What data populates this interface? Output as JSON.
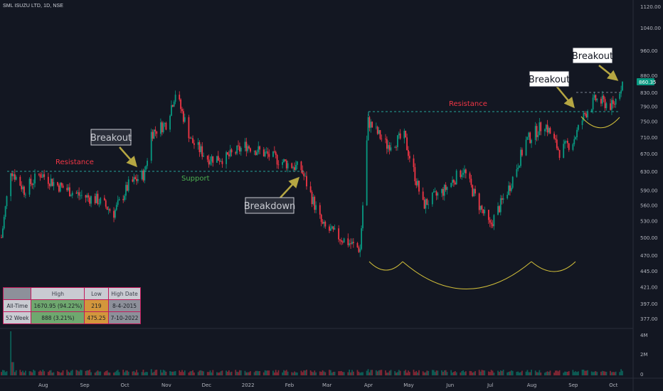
{
  "header": {
    "symbol": "SML ISUZU LTD, 1D, NSE"
  },
  "price_axis": {
    "ticks": [
      "1120.00",
      "1040.00",
      "960.00",
      "880.00",
      "830.00",
      "790.00",
      "750.00",
      "710.00",
      "670.00",
      "630.00",
      "590.00",
      "560.00",
      "530.00",
      "500.00",
      "470.00",
      "445.00",
      "421.00",
      "397.00",
      "377.00"
    ],
    "last_price": "860.35",
    "last_price_color": "#089981"
  },
  "volume_axis": {
    "ticks": [
      "4M",
      "2M",
      "0"
    ]
  },
  "time_axis": {
    "ticks": [
      "Aug",
      "Sep",
      "Oct",
      "Nov",
      "Dec",
      "2022",
      "Feb",
      "Mar",
      "Apr",
      "May",
      "Jun",
      "Jul",
      "Aug",
      "Sep",
      "Oct"
    ]
  },
  "annotations": {
    "resistance_left": "Resistance",
    "support": "Support",
    "resistance_right": "Resistance",
    "breakout_1": "Breakout",
    "breakdown": "Breakdown",
    "breakout_2": "Breakout",
    "breakout_3": "Breakout"
  },
  "stats_table": {
    "headers": [
      "",
      "High",
      "Low",
      "High Date"
    ],
    "rows": [
      {
        "label": "All-Time",
        "high": "1670.95 (94.22%)",
        "low": "219",
        "date": "8-4-2015"
      },
      {
        "label": "52 Week",
        "high": "888 (3.21%)",
        "low": "475.25",
        "date": "7-10-2022"
      }
    ]
  },
  "colors": {
    "up": "#089981",
    "down": "#f23645",
    "support": "#4caf50",
    "resistance_text": "#f23645",
    "resistance_line": "#26a69a",
    "arrow": "#b5a642",
    "cup_curve": "#d4c13a"
  },
  "chart_data": {
    "type": "candlestick",
    "title": "SML ISUZU LTD, 1D, NSE",
    "scale": "log",
    "ylim": [
      377,
      1120
    ],
    "x_range": [
      "2021-07-05",
      "2022-10-12"
    ],
    "months": [
      "Aug",
      "Sep",
      "Oct",
      "Nov",
      "Dec",
      "2022",
      "Feb",
      "Mar",
      "Apr",
      "May",
      "Jun",
      "Jul",
      "Aug",
      "Sep",
      "Oct"
    ],
    "close_path": [
      {
        "date": "2021-07-05",
        "close": 500
      },
      {
        "date": "2021-07-12",
        "close": 635
      },
      {
        "date": "2021-07-22",
        "close": 590
      },
      {
        "date": "2021-08-03",
        "close": 625
      },
      {
        "date": "2021-08-16",
        "close": 600
      },
      {
        "date": "2021-09-01",
        "close": 580
      },
      {
        "date": "2021-09-15",
        "close": 570
      },
      {
        "date": "2021-09-27",
        "close": 545
      },
      {
        "date": "2021-10-08",
        "close": 600
      },
      {
        "date": "2021-10-20",
        "close": 625
      },
      {
        "date": "2021-10-25",
        "close": 720
      },
      {
        "date": "2021-11-05",
        "close": 745
      },
      {
        "date": "2021-11-12",
        "close": 830
      },
      {
        "date": "2021-11-24",
        "close": 700
      },
      {
        "date": "2021-12-06",
        "close": 660
      },
      {
        "date": "2021-12-20",
        "close": 660
      },
      {
        "date": "2022-01-04",
        "close": 690
      },
      {
        "date": "2022-01-18",
        "close": 670
      },
      {
        "date": "2022-02-01",
        "close": 650
      },
      {
        "date": "2022-02-14",
        "close": 635
      },
      {
        "date": "2022-02-24",
        "close": 560
      },
      {
        "date": "2022-03-02",
        "close": 520
      },
      {
        "date": "2022-03-15",
        "close": 500
      },
      {
        "date": "2022-03-30",
        "close": 480
      },
      {
        "date": "2022-04-01",
        "close": 560
      },
      {
        "date": "2022-04-05",
        "close": 750
      },
      {
        "date": "2022-04-19",
        "close": 690
      },
      {
        "date": "2022-05-02",
        "close": 710
      },
      {
        "date": "2022-05-16",
        "close": 560
      },
      {
        "date": "2022-06-01",
        "close": 590
      },
      {
        "date": "2022-06-15",
        "close": 635
      },
      {
        "date": "2022-06-25",
        "close": 570
      },
      {
        "date": "2022-07-05",
        "close": 520
      },
      {
        "date": "2022-07-20",
        "close": 600
      },
      {
        "date": "2022-08-01",
        "close": 700
      },
      {
        "date": "2022-08-15",
        "close": 745
      },
      {
        "date": "2022-08-26",
        "close": 675
      },
      {
        "date": "2022-09-05",
        "close": 700
      },
      {
        "date": "2022-09-14",
        "close": 770
      },
      {
        "date": "2022-09-22",
        "close": 810
      },
      {
        "date": "2022-10-05",
        "close": 790
      },
      {
        "date": "2022-10-12",
        "close": 860
      }
    ],
    "levels": [
      {
        "name": "Resistance",
        "value": 632,
        "from": "2021-07-05",
        "to": "2022-02-24"
      },
      {
        "name": "Resistance",
        "value": 775,
        "from": "2022-04-04",
        "to": "2022-10-12"
      },
      {
        "name": "Resistance",
        "value": 820,
        "from": "2022-09-18",
        "to": "2022-10-12"
      }
    ],
    "last_price": 860.35,
    "volume": {
      "peak": 4000000,
      "peak_date": "2021-07-12",
      "secondary_peaks": [
        "2021-10-25",
        "2022-04-05",
        "2022-10-11"
      ]
    }
  }
}
